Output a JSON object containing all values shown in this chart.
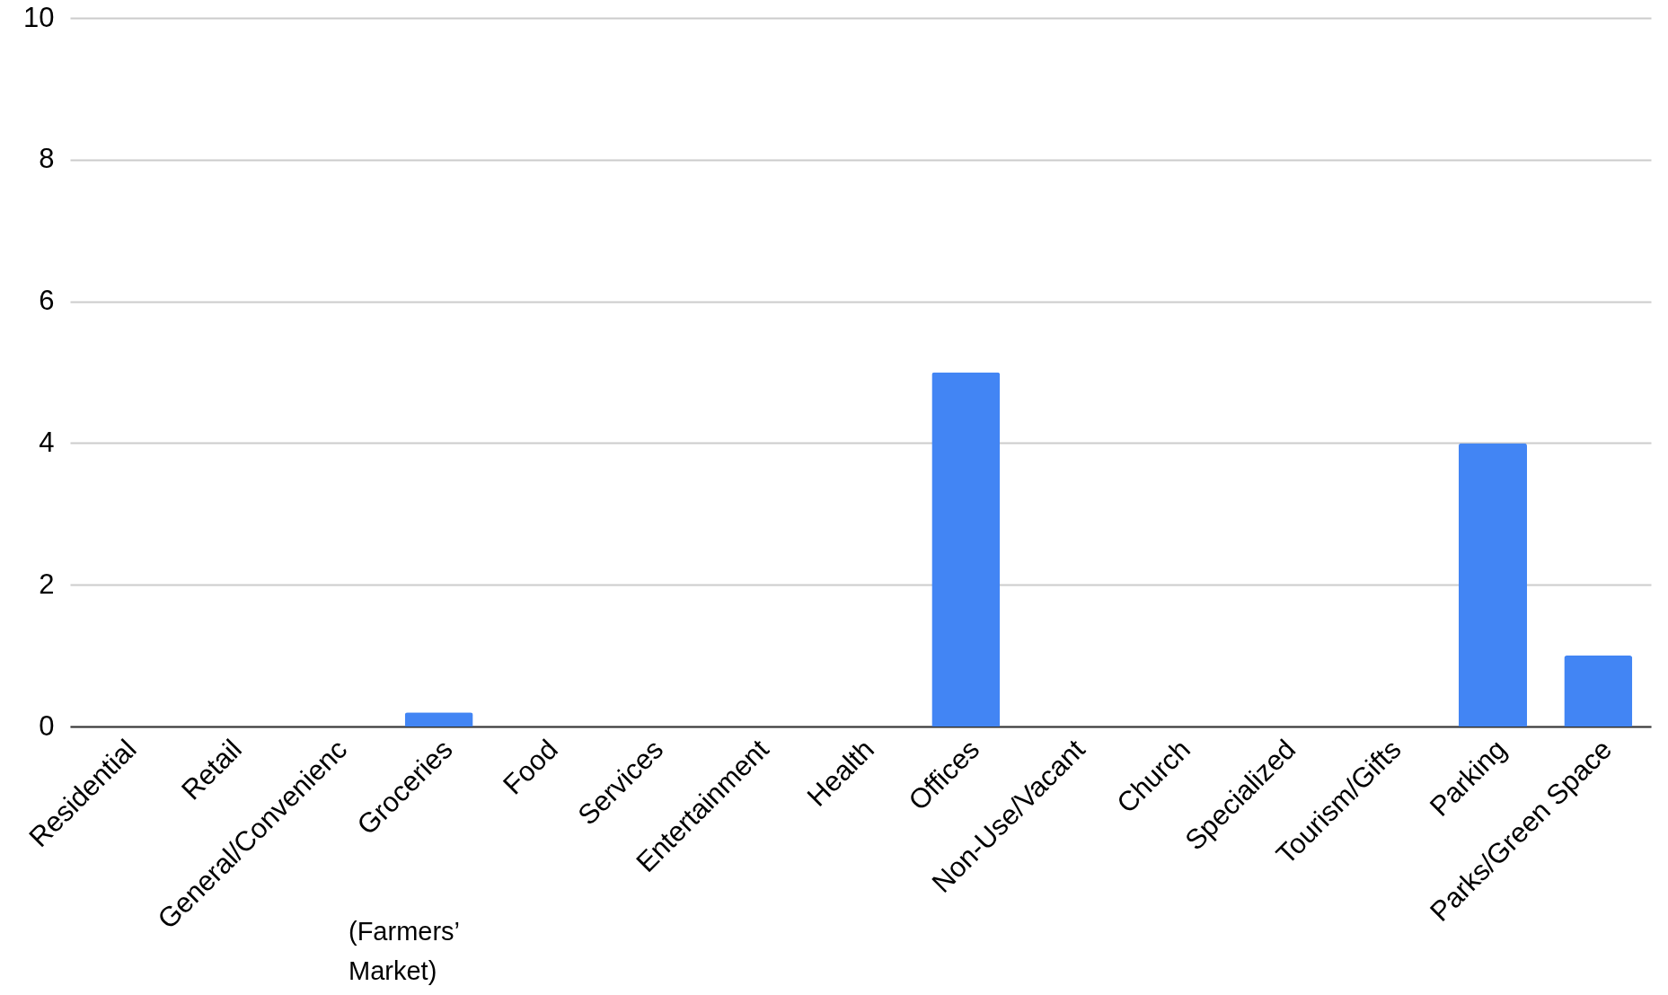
{
  "chart_data": {
    "type": "bar",
    "categories": [
      "Residential",
      "Retail",
      "General/Convenienc",
      "Groceries",
      "Food",
      "Services",
      "Entertainment",
      "Health",
      "Offices",
      "Non-Use/Vacant",
      "Church",
      "Specialized",
      "Tourism/Gifts",
      "Parking",
      "Parks/Green Space"
    ],
    "values": [
      0,
      0,
      0,
      0.2,
      0,
      0,
      0,
      0,
      5,
      0,
      0,
      0,
      0,
      4,
      1
    ],
    "color": "#4285f4",
    "ylim": [
      0,
      10
    ],
    "yticks": [
      0,
      2,
      4,
      6,
      8,
      10
    ],
    "grid": "y",
    "annotations": [
      "(Farmers’\nMarket)"
    ]
  }
}
